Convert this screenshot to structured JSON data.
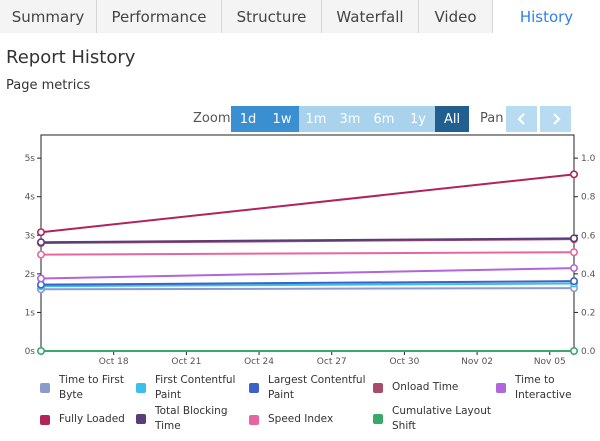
{
  "tabs": [
    {
      "label": "Summary",
      "active": false
    },
    {
      "label": "Performance",
      "active": false
    },
    {
      "label": "Structure",
      "active": false
    },
    {
      "label": "Waterfall",
      "active": false
    },
    {
      "label": "Video",
      "active": false
    },
    {
      "label": "History",
      "active": true
    }
  ],
  "page_title": "Report History",
  "section_title": "Page metrics",
  "zoom": {
    "label": "Zoom",
    "options": [
      "1d",
      "1w",
      "1m",
      "3m",
      "6m",
      "1y",
      "All"
    ],
    "selected": "All"
  },
  "pan": {
    "label": "Pan",
    "left_icon": "chevron-left-icon",
    "right_icon": "chevron-right-icon"
  },
  "colors": {
    "accent": "#2f80ed",
    "zoom_dark": "#3a8fd0",
    "zoom_light": "#a9d2ec",
    "zoom_selected": "#215f90",
    "pan_button": "#b7dbf1"
  },
  "chart_data": {
    "type": "line",
    "x_ticks": [
      "Oct 18",
      "Oct 21",
      "Oct 24",
      "Oct 27",
      "Oct 30",
      "Nov 02",
      "Nov 05"
    ],
    "x_range": [
      "Oct 15",
      "Nov 06"
    ],
    "y_left_ticks": [
      "0s",
      "1s",
      "2s",
      "3s",
      "4s",
      "5s"
    ],
    "y_left_range": [
      0,
      5.6
    ],
    "y_right_ticks": [
      "0.0",
      "0.2",
      "0.4",
      "0.6",
      "0.8",
      "1.0"
    ],
    "y_right_range": [
      0,
      1.12
    ],
    "grid": false,
    "legend_position": "bottom",
    "series": [
      {
        "name": "Time to First Byte",
        "color": "#8b9ccc",
        "axis": "left",
        "points": [
          [
            "Oct 15",
            1.6
          ],
          [
            "Nov 06",
            1.63
          ]
        ]
      },
      {
        "name": "First Contentful Paint",
        "color": "#3cbfe8",
        "axis": "left",
        "points": [
          [
            "Oct 15",
            1.68
          ],
          [
            "Nov 06",
            1.75
          ]
        ]
      },
      {
        "name": "Largest Contentful Paint",
        "color": "#3a62c8",
        "axis": "left",
        "points": [
          [
            "Oct 15",
            1.72
          ],
          [
            "Nov 06",
            1.81
          ]
        ]
      },
      {
        "name": "Onload Time",
        "color": "#a94b6a",
        "axis": "left",
        "points": [
          [
            "Oct 15",
            2.8
          ],
          [
            "Nov 06",
            2.9
          ]
        ]
      },
      {
        "name": "Time to Interactive",
        "color": "#b066d8",
        "axis": "left",
        "points": [
          [
            "Oct 15",
            1.88
          ],
          [
            "Nov 06",
            2.15
          ]
        ]
      },
      {
        "name": "Fully Loaded",
        "color": "#b0245a",
        "axis": "left",
        "points": [
          [
            "Oct 15",
            3.08
          ],
          [
            "Nov 06",
            4.58
          ]
        ]
      },
      {
        "name": "Total Blocking Time",
        "color": "#5a3c7a",
        "axis": "left",
        "points": [
          [
            "Oct 15",
            2.82
          ],
          [
            "Nov 06",
            2.92
          ]
        ]
      },
      {
        "name": "Speed Index",
        "color": "#e8669e",
        "axis": "left",
        "points": [
          [
            "Oct 15",
            2.5
          ],
          [
            "Nov 06",
            2.56
          ]
        ]
      },
      {
        "name": "Cumulative Layout Shift",
        "color": "#3aa86b",
        "axis": "right",
        "points": [
          [
            "Oct 15",
            0.0
          ],
          [
            "Nov 06",
            0.0
          ]
        ]
      }
    ]
  },
  "legend": {
    "row1": [
      {
        "label": "Time to First\nByte",
        "color": "#8b9ccc"
      },
      {
        "label": "First Contentful\nPaint",
        "color": "#3cbfe8"
      },
      {
        "label": "Largest Contentful\nPaint",
        "color": "#3a62c8"
      },
      {
        "label": "Onload Time",
        "color": "#a94b6a"
      },
      {
        "label": "Time to\nInteractive",
        "color": "#b066d8"
      }
    ],
    "row2": [
      {
        "label": "Fully Loaded",
        "color": "#b0245a"
      },
      {
        "label": "Total Blocking\nTime",
        "color": "#5a3c7a"
      },
      {
        "label": "Speed Index",
        "color": "#e8669e"
      },
      {
        "label": "Cumulative Layout\nShift",
        "color": "#3aa86b"
      }
    ]
  }
}
